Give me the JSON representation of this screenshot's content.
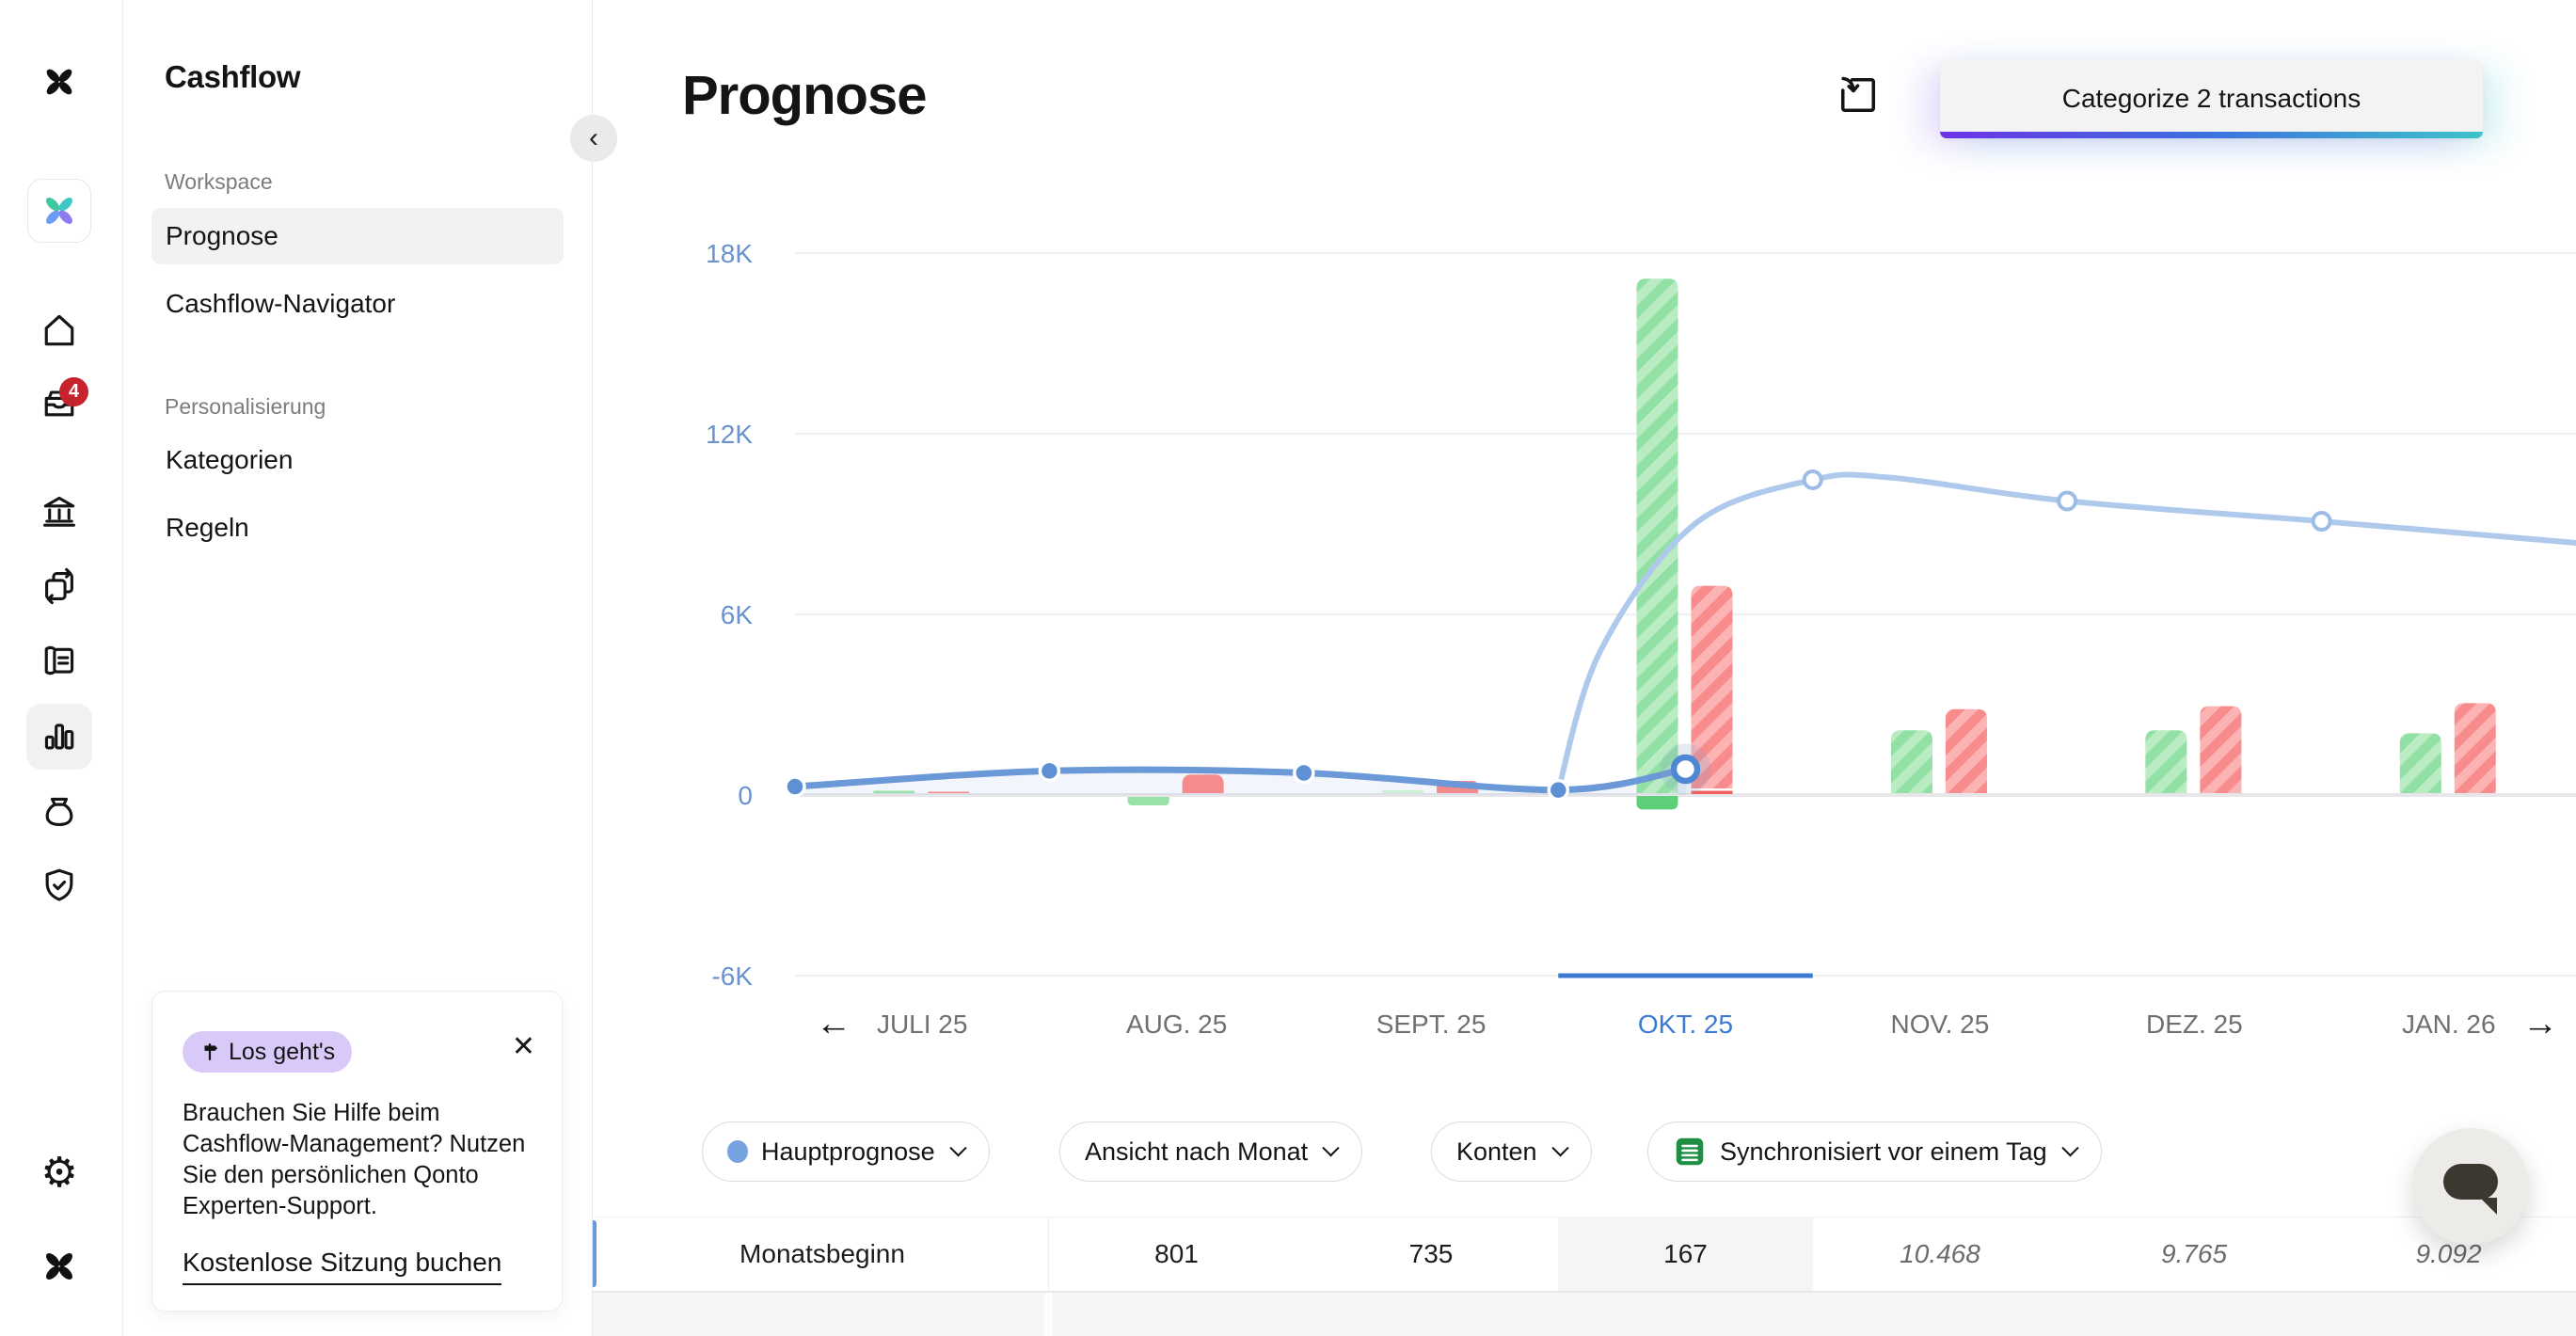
{
  "colors": {
    "accent_blue": "#3c7bd1",
    "line_actual": "#6b98d6",
    "line_forecast": "#aec9ec",
    "bar_green": "#92e0a4",
    "bar_green_light": "#b9ecc3",
    "bar_red": "#f88b8b",
    "bar_red_light": "#fbb3b3",
    "badge_purple": "#d9c9f8",
    "notification_red": "#c5242c",
    "sheet_green": "#1f8f45",
    "gradient": [
      "#6d32e6",
      "#3d6fe0",
      "#3fc3c9"
    ]
  },
  "rail": {
    "logo": "qonto-logo",
    "badge_count": "4",
    "icons": [
      "home",
      "inbox",
      "bank",
      "transfers",
      "invoices",
      "cashflow-chart",
      "budget-bag",
      "insurance-shield",
      "settings-gear",
      "qonto-logo"
    ]
  },
  "sidebar": {
    "title": "Cashflow",
    "sections": [
      {
        "label": "Workspace",
        "items": [
          {
            "label": "Prognose",
            "active": true
          },
          {
            "label": "Cashflow-Navigator",
            "active": false
          }
        ]
      },
      {
        "label": "Personalisierung",
        "items": [
          {
            "label": "Kategorien",
            "active": false
          },
          {
            "label": "Regeln",
            "active": false
          }
        ]
      }
    ],
    "help_card": {
      "badge": "Los geht's",
      "body": "Brauchen Sie Hilfe beim Cashflow-Management? Nutzen Sie den persönlichen Qonto Experten-Support.",
      "link": "Kostenlose Sitzung buchen",
      "close": "✕"
    },
    "collapse": "‹"
  },
  "header": {
    "title": "Prognose",
    "categorize_button": "Categorize 2 transactions"
  },
  "filters": {
    "scenario": "Hauptprognose",
    "view": "Ansicht nach Monat",
    "accounts": "Konten",
    "sync": "Synchronisiert vor einem Tag"
  },
  "table": {
    "row_label": "Monatsbeginn",
    "values": [
      {
        "text": "801",
        "state": "actual"
      },
      {
        "text": "735",
        "state": "actual"
      },
      {
        "text": "167",
        "state": "actual",
        "highlight": true
      },
      {
        "text": "10.468",
        "state": "forecast"
      },
      {
        "text": "9.765",
        "state": "forecast"
      },
      {
        "text": "9.092",
        "state": "forecast"
      }
    ]
  },
  "chart_data": {
    "type": "bar-line-combo",
    "title": "Prognose",
    "ylim": [
      -6000,
      18000
    ],
    "y_ticks": [
      18000,
      12000,
      6000,
      0,
      -6000
    ],
    "y_tick_labels": [
      "18K",
      "12K",
      "6K",
      "0",
      "-6K"
    ],
    "x_labels": [
      "JULI 25",
      "AUG. 25",
      "SEPT. 25",
      "OKT. 25",
      "NOV. 25",
      "DEZ. 25",
      "JAN. 26"
    ],
    "selected_month": "OKT. 25",
    "selected_index": 3,
    "nav": {
      "prev": "←",
      "next": "→"
    },
    "bars": [
      {
        "month": "JULI 25",
        "income": 140,
        "expenses": 110,
        "style": "actual"
      },
      {
        "month": "AUG. 25",
        "income": -280,
        "expenses": 680,
        "style": "actual"
      },
      {
        "month": "SEPT. 25",
        "income": 160,
        "expenses": 470,
        "style": "actual",
        "muted_income": true
      },
      {
        "month": "OKT. 25",
        "income": 17150,
        "expenses": 6950,
        "style": "forecast",
        "income_overflow_below_zero": 450,
        "expenses_actual_strip": 110
      },
      {
        "month": "NOV. 25",
        "income": 2150,
        "expenses": 2850,
        "style": "forecast"
      },
      {
        "month": "DEZ. 25",
        "income": 2150,
        "expenses": 2950,
        "style": "forecast"
      },
      {
        "month": "JAN. 26",
        "income": 2050,
        "expenses": 3050,
        "style": "forecast"
      }
    ],
    "balance_line": {
      "actual_values_at_month_start": [
        280,
        801,
        735,
        167
      ],
      "today": {
        "month_index": 3,
        "value": 860
      },
      "forecast_values_at_month_start": [
        10468,
        9765,
        9092
      ],
      "value_at_right_edge": 8375
    }
  }
}
